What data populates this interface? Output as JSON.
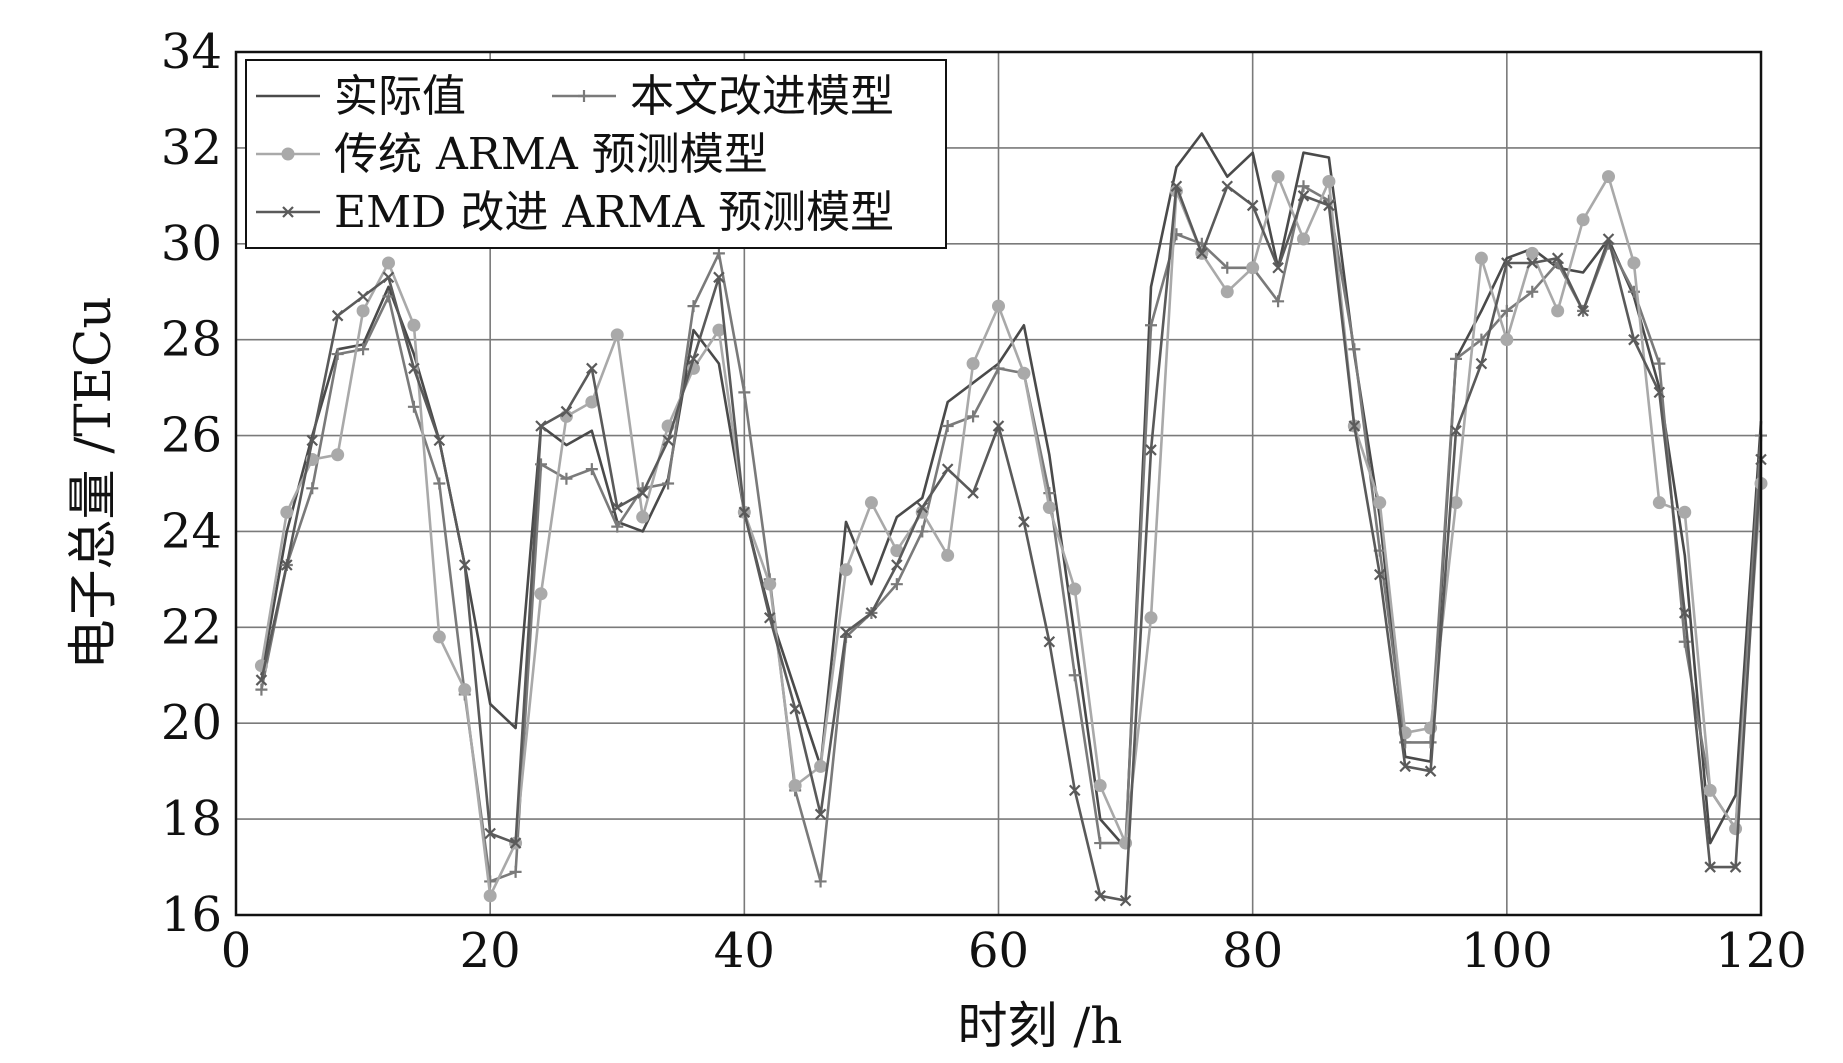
{
  "chart_data": {
    "type": "line",
    "xlabel": "时刻 /h",
    "ylabel": "电子总量 /TECu",
    "xlim": [
      0,
      120
    ],
    "ylim": [
      16,
      34
    ],
    "xticks": [
      "0",
      "20",
      "40",
      "60",
      "80",
      "100",
      "120"
    ],
    "yticks": [
      "16",
      "18",
      "20",
      "22",
      "24",
      "26",
      "28",
      "30",
      "32",
      "34"
    ],
    "grid": true,
    "legend_position": "top-left",
    "x": [
      2,
      4,
      6,
      8,
      10,
      12,
      14,
      16,
      18,
      20,
      22,
      24,
      26,
      28,
      30,
      32,
      34,
      36,
      38,
      40,
      42,
      44,
      46,
      48,
      50,
      52,
      54,
      56,
      58,
      60,
      62,
      64,
      66,
      68,
      70,
      72,
      74,
      76,
      78,
      80,
      82,
      84,
      86,
      88,
      90,
      92,
      94,
      96,
      98,
      100,
      102,
      104,
      106,
      108,
      110,
      112,
      114,
      116,
      118,
      120
    ],
    "series": [
      {
        "name": "实际值",
        "color": "#4a4a4a",
        "marker": "none",
        "values": [
          21.0,
          24.0,
          26.0,
          27.8,
          27.9,
          29.1,
          27.7,
          25.9,
          23.3,
          20.4,
          19.9,
          26.2,
          25.8,
          26.1,
          24.2,
          24.0,
          25.1,
          28.2,
          27.5,
          24.4,
          22.3,
          20.7,
          19.1,
          24.2,
          22.9,
          24.3,
          24.7,
          26.7,
          27.1,
          27.5,
          28.3,
          25.6,
          21.8,
          18.0,
          17.4,
          29.1,
          31.6,
          32.3,
          31.4,
          31.9,
          29.5,
          31.9,
          31.8,
          27.7,
          24.3,
          19.3,
          19.2,
          27.6,
          28.6,
          29.7,
          29.9,
          29.5,
          29.4,
          30.1,
          28.9,
          27.0,
          23.5,
          17.5,
          18.5,
          26.3
        ]
      },
      {
        "name": "本文改进模型",
        "color": "#7a7a7a",
        "marker": "plus",
        "values": [
          20.7,
          23.3,
          24.9,
          27.7,
          27.8,
          28.9,
          26.6,
          25.0,
          20.6,
          16.7,
          16.9,
          25.4,
          25.1,
          25.3,
          24.1,
          24.9,
          25.0,
          28.7,
          29.8,
          26.9,
          23.0,
          18.6,
          16.7,
          21.8,
          22.3,
          22.9,
          24.0,
          26.2,
          26.4,
          27.4,
          27.3,
          24.8,
          21.0,
          17.5,
          17.5,
          28.3,
          30.2,
          30.0,
          29.5,
          29.5,
          28.8,
          31.2,
          30.9,
          27.8,
          23.6,
          19.6,
          19.6,
          27.6,
          28.0,
          28.6,
          29.0,
          29.6,
          28.6,
          30.0,
          29.0,
          27.5,
          21.7,
          18.6,
          17.8,
          26.0
        ]
      },
      {
        "name": "传统 ARMA 预测模型",
        "color": "#a9a9a9",
        "marker": "circle",
        "values": [
          21.2,
          24.4,
          25.5,
          25.6,
          28.6,
          29.6,
          28.3,
          21.8,
          20.7,
          16.4,
          17.5,
          22.7,
          26.4,
          26.7,
          28.1,
          24.3,
          26.2,
          27.4,
          28.2,
          24.4,
          22.9,
          18.7,
          19.1,
          23.2,
          24.6,
          23.6,
          24.4,
          23.5,
          27.5,
          28.7,
          27.3,
          24.5,
          22.8,
          18.7,
          17.5,
          22.2,
          31.1,
          29.8,
          29.0,
          29.5,
          31.4,
          30.1,
          31.3,
          26.2,
          24.6,
          19.8,
          19.9,
          24.6,
          29.7,
          28.0,
          29.8,
          28.6,
          30.5,
          31.4,
          29.6,
          24.6,
          24.4,
          18.6,
          17.8,
          25.0
        ]
      },
      {
        "name": "EMD 改进 ARMA 预测模型",
        "color": "#5a5a5a",
        "marker": "cross",
        "values": [
          20.9,
          23.3,
          25.9,
          28.5,
          28.9,
          29.3,
          27.4,
          25.9,
          23.3,
          17.7,
          17.5,
          26.2,
          26.5,
          27.4,
          24.5,
          24.8,
          25.9,
          27.6,
          29.3,
          24.4,
          22.2,
          20.3,
          18.1,
          21.9,
          22.3,
          23.3,
          24.5,
          25.3,
          24.8,
          26.2,
          24.2,
          21.7,
          18.6,
          16.4,
          16.3,
          25.7,
          31.2,
          29.8,
          31.2,
          30.8,
          29.5,
          31.0,
          30.8,
          26.2,
          23.1,
          19.1,
          19.0,
          26.1,
          27.5,
          29.6,
          29.6,
          29.7,
          28.6,
          30.1,
          28.0,
          26.9,
          22.3,
          17.0,
          17.0,
          25.5
        ]
      }
    ]
  }
}
